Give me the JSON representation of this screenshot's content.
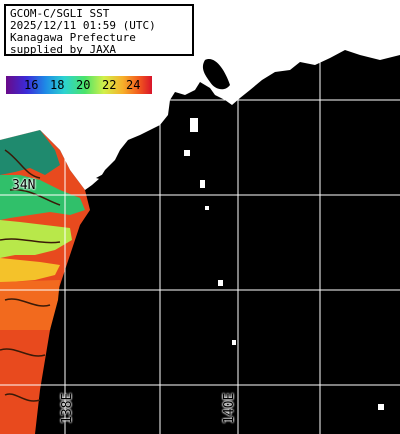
{
  "info": {
    "line1": "GCOM-C/SGLI SST",
    "line2": "2025/12/11 01:59 (UTC)",
    "line3": "Kanagawa Prefecture",
    "line4": "supplied by JAXA"
  },
  "legend": {
    "ticks": [
      "16",
      "18",
      "20",
      "22",
      "24"
    ],
    "colors": [
      "#6a0a88",
      "#3b2bd8",
      "#1e8ae6",
      "#2cd3d0",
      "#4be36a",
      "#d2f04a",
      "#f6b02a",
      "#f25a1e",
      "#d8142a"
    ]
  },
  "grid": {
    "lat_label": "34N",
    "lon_labels": [
      "138E",
      "140E"
    ]
  }
}
